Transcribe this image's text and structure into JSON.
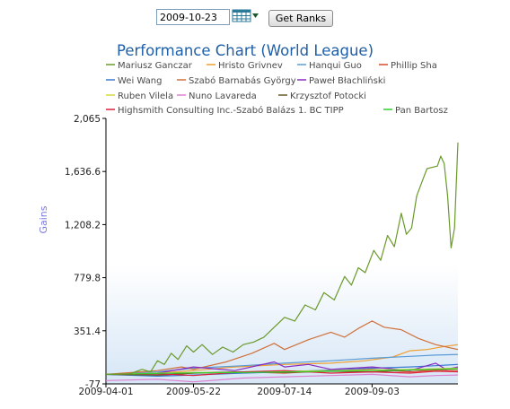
{
  "toolbar": {
    "date_value": "2009-10-23",
    "get_ranks_label": "Get Ranks",
    "calendar_icon": "calendar-grid-icon",
    "dropdown_icon": "triangle-down-icon"
  },
  "chart_data": {
    "type": "line",
    "title": "Performance Chart (World League)",
    "ylabel": "Gains",
    "ylim": [
      -77,
      2065
    ],
    "yticks": [
      "2,065",
      "1,636.6",
      "1,208.2",
      "779.8",
      "351.4",
      "-77"
    ],
    "ytick_values": [
      2065,
      1636.6,
      1208.2,
      779.8,
      351.4,
      -77
    ],
    "xlim": [
      "2009-04-01",
      "2009-10-23"
    ],
    "xticks": [
      "2009-04-01",
      "2009-05-22",
      "2009-07-14",
      "2009-09-03"
    ],
    "xtick_dates": [
      "2009-04-01",
      "2009-05-22",
      "2009-07-14",
      "2009-09-03"
    ],
    "legend_position": "top",
    "grid": false,
    "title_color": "#1f5fa8",
    "ylabel_color": "#7a7adf",
    "series": [
      {
        "name": "Mariusz Ganczar",
        "color": "#6a9a2a",
        "points": [
          [
            "2009-04-01",
            0
          ],
          [
            "2009-04-15",
            5
          ],
          [
            "2009-04-22",
            40
          ],
          [
            "2009-04-27",
            20
          ],
          [
            "2009-05-01",
            110
          ],
          [
            "2009-05-05",
            80
          ],
          [
            "2009-05-09",
            170
          ],
          [
            "2009-05-13",
            120
          ],
          [
            "2009-05-18",
            230
          ],
          [
            "2009-05-22",
            180
          ],
          [
            "2009-05-27",
            240
          ],
          [
            "2009-06-02",
            160
          ],
          [
            "2009-06-08",
            220
          ],
          [
            "2009-06-14",
            180
          ],
          [
            "2009-06-20",
            240
          ],
          [
            "2009-06-26",
            260
          ],
          [
            "2009-07-02",
            300
          ],
          [
            "2009-07-08",
            380
          ],
          [
            "2009-07-14",
            460
          ],
          [
            "2009-07-20",
            430
          ],
          [
            "2009-07-26",
            560
          ],
          [
            "2009-08-01",
            520
          ],
          [
            "2009-08-06",
            660
          ],
          [
            "2009-08-12",
            600
          ],
          [
            "2009-08-18",
            790
          ],
          [
            "2009-08-22",
            720
          ],
          [
            "2009-08-26",
            860
          ],
          [
            "2009-08-30",
            820
          ],
          [
            "2009-09-04",
            1000
          ],
          [
            "2009-09-08",
            920
          ],
          [
            "2009-09-12",
            1120
          ],
          [
            "2009-09-16",
            1030
          ],
          [
            "2009-09-20",
            1300
          ],
          [
            "2009-09-23",
            1130
          ],
          [
            "2009-09-26",
            1180
          ],
          [
            "2009-09-29",
            1440
          ],
          [
            "2009-10-02",
            1550
          ],
          [
            "2009-10-05",
            1660
          ],
          [
            "2009-10-08",
            1670
          ],
          [
            "2009-10-11",
            1680
          ],
          [
            "2009-10-13",
            1760
          ],
          [
            "2009-10-15",
            1700
          ],
          [
            "2009-10-17",
            1440
          ],
          [
            "2009-10-19",
            1020
          ],
          [
            "2009-10-21",
            1180
          ],
          [
            "2009-10-23",
            1870
          ]
        ]
      },
      {
        "name": "Hristo Grivnev",
        "color": "#f0a030",
        "points": [
          [
            "2009-04-01",
            0
          ],
          [
            "2009-05-01",
            10
          ],
          [
            "2009-05-22",
            30
          ],
          [
            "2009-06-15",
            60
          ],
          [
            "2009-07-14",
            80
          ],
          [
            "2009-08-10",
            90
          ],
          [
            "2009-08-30",
            110
          ],
          [
            "2009-09-15",
            140
          ],
          [
            "2009-09-25",
            190
          ],
          [
            "2009-10-05",
            200
          ],
          [
            "2009-10-15",
            225
          ],
          [
            "2009-10-23",
            240
          ]
        ]
      },
      {
        "name": "Hanqui Guo",
        "color": "#5a9bd5",
        "points": [
          [
            "2009-04-01",
            0
          ],
          [
            "2009-05-01",
            20
          ],
          [
            "2009-05-22",
            50
          ],
          [
            "2009-06-20",
            70
          ],
          [
            "2009-07-14",
            90
          ],
          [
            "2009-08-10",
            110
          ],
          [
            "2009-09-03",
            130
          ],
          [
            "2009-09-25",
            145
          ],
          [
            "2009-10-10",
            155
          ],
          [
            "2009-10-23",
            160
          ]
        ]
      },
      {
        "name": "Phillip Sha",
        "color": "#d84a2a",
        "points": [
          [
            "2009-04-01",
            0
          ],
          [
            "2009-05-01",
            -10
          ],
          [
            "2009-05-22",
            10
          ],
          [
            "2009-06-20",
            20
          ],
          [
            "2009-07-14",
            10
          ],
          [
            "2009-08-10",
            30
          ],
          [
            "2009-09-03",
            40
          ],
          [
            "2009-09-25",
            20
          ],
          [
            "2009-10-10",
            35
          ],
          [
            "2009-10-23",
            30
          ]
        ]
      },
      {
        "name": "Wei Wang",
        "color": "#3a7ad0",
        "points": [
          [
            "2009-04-01",
            0
          ],
          [
            "2009-05-01",
            -15
          ],
          [
            "2009-05-22",
            -5
          ],
          [
            "2009-06-20",
            10
          ],
          [
            "2009-07-14",
            20
          ],
          [
            "2009-08-10",
            35
          ],
          [
            "2009-09-03",
            50
          ],
          [
            "2009-09-25",
            60
          ],
          [
            "2009-10-10",
            70
          ],
          [
            "2009-10-23",
            80
          ]
        ]
      },
      {
        "name": "Szabó Barnabás György",
        "color": "#d0703a",
        "points": [
          [
            "2009-04-01",
            0
          ],
          [
            "2009-05-01",
            30
          ],
          [
            "2009-05-15",
            60
          ],
          [
            "2009-05-22",
            40
          ],
          [
            "2009-06-10",
            100
          ],
          [
            "2009-06-25",
            170
          ],
          [
            "2009-07-08",
            250
          ],
          [
            "2009-07-14",
            200
          ],
          [
            "2009-07-28",
            280
          ],
          [
            "2009-08-10",
            340
          ],
          [
            "2009-08-18",
            300
          ],
          [
            "2009-08-26",
            370
          ],
          [
            "2009-09-03",
            430
          ],
          [
            "2009-09-10",
            380
          ],
          [
            "2009-09-20",
            360
          ],
          [
            "2009-09-30",
            290
          ],
          [
            "2009-10-10",
            240
          ],
          [
            "2009-10-23",
            200
          ]
        ]
      },
      {
        "name": "Paweł Błachliński",
        "color": "#8a2ac0",
        "points": [
          [
            "2009-04-01",
            0
          ],
          [
            "2009-05-01",
            10
          ],
          [
            "2009-05-22",
            60
          ],
          [
            "2009-06-15",
            30
          ],
          [
            "2009-07-08",
            100
          ],
          [
            "2009-07-14",
            60
          ],
          [
            "2009-07-28",
            80
          ],
          [
            "2009-08-10",
            40
          ],
          [
            "2009-09-03",
            60
          ],
          [
            "2009-09-25",
            30
          ],
          [
            "2009-10-10",
            90
          ],
          [
            "2009-10-16",
            40
          ],
          [
            "2009-10-23",
            60
          ]
        ]
      },
      {
        "name": "Ruben Vilela",
        "color": "#d8d840",
        "points": [
          [
            "2009-04-01",
            0
          ],
          [
            "2009-05-01",
            10
          ],
          [
            "2009-05-22",
            15
          ],
          [
            "2009-06-20",
            20
          ],
          [
            "2009-07-14",
            25
          ],
          [
            "2009-08-10",
            30
          ],
          [
            "2009-09-03",
            35
          ],
          [
            "2009-09-25",
            40
          ],
          [
            "2009-10-10",
            45
          ],
          [
            "2009-10-23",
            50
          ]
        ]
      },
      {
        "name": "Nuno Lavareda",
        "color": "#e080d0",
        "points": [
          [
            "2009-04-01",
            -50
          ],
          [
            "2009-05-01",
            -40
          ],
          [
            "2009-05-22",
            -60
          ],
          [
            "2009-06-20",
            -30
          ],
          [
            "2009-07-14",
            -20
          ],
          [
            "2009-08-10",
            -10
          ],
          [
            "2009-09-03",
            0
          ],
          [
            "2009-09-25",
            -20
          ],
          [
            "2009-10-10",
            -10
          ],
          [
            "2009-10-23",
            -5
          ]
        ]
      },
      {
        "name": "Krzysztof Potocki",
        "color": "#6a5a2a",
        "points": [
          [
            "2009-04-01",
            0
          ],
          [
            "2009-05-01",
            -5
          ],
          [
            "2009-05-22",
            10
          ],
          [
            "2009-06-20",
            20
          ],
          [
            "2009-07-14",
            15
          ],
          [
            "2009-08-10",
            25
          ],
          [
            "2009-09-03",
            20
          ],
          [
            "2009-09-25",
            35
          ],
          [
            "2009-10-10",
            40
          ],
          [
            "2009-10-23",
            45
          ]
        ]
      },
      {
        "name": "Highsmith Consulting Inc.-Szabó Balázs 1. BC TIPP",
        "color": "#e0203a",
        "points": [
          [
            "2009-04-01",
            0
          ],
          [
            "2009-05-01",
            5
          ],
          [
            "2009-05-22",
            -10
          ],
          [
            "2009-06-20",
            20
          ],
          [
            "2009-07-14",
            30
          ],
          [
            "2009-08-10",
            10
          ],
          [
            "2009-09-03",
            20
          ],
          [
            "2009-09-25",
            10
          ],
          [
            "2009-10-10",
            25
          ],
          [
            "2009-10-23",
            20
          ]
        ]
      },
      {
        "name": "Pan Bartosz",
        "color": "#30d030",
        "points": [
          [
            "2009-04-01",
            0
          ],
          [
            "2009-05-01",
            8
          ],
          [
            "2009-05-22",
            12
          ],
          [
            "2009-06-20",
            15
          ],
          [
            "2009-07-14",
            20
          ],
          [
            "2009-08-10",
            25
          ],
          [
            "2009-09-03",
            30
          ],
          [
            "2009-09-25",
            35
          ],
          [
            "2009-10-10",
            40
          ],
          [
            "2009-10-23",
            45
          ]
        ]
      }
    ]
  }
}
